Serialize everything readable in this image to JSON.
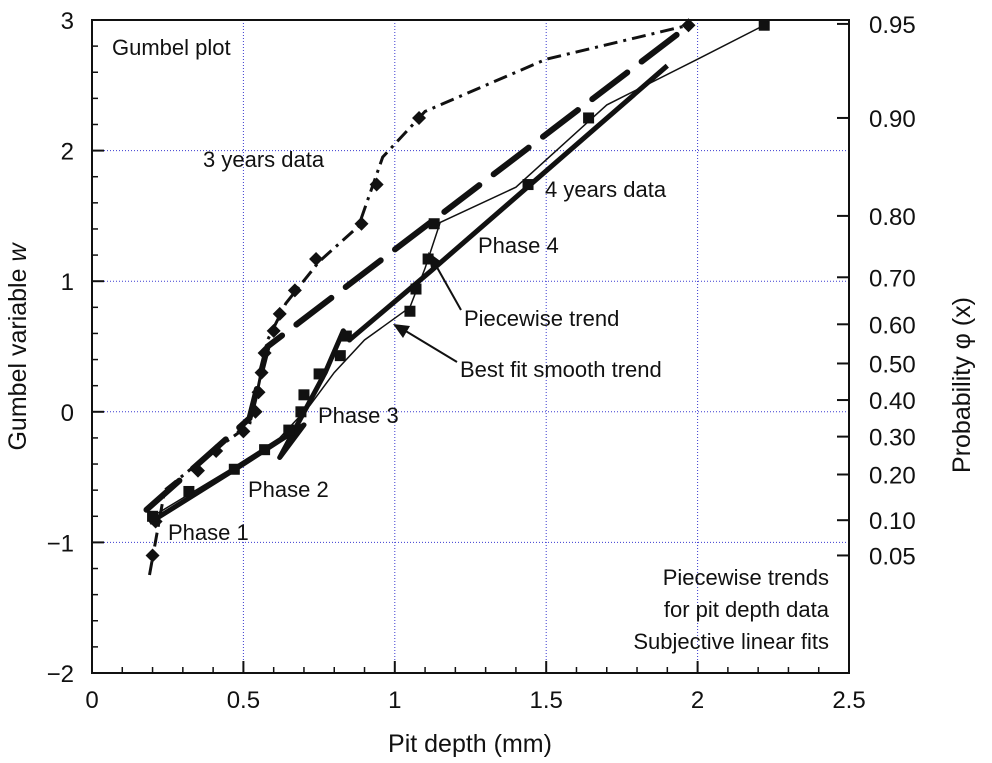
{
  "chart_data": {
    "type": "scatter",
    "title": "Gumbel plot",
    "xlabel": "Pit depth (mm)",
    "ylabel": "Gumbel variable w",
    "ylabel_italic_part": "w",
    "ylabel_right": "Probability φ (x)",
    "xlim": [
      0,
      2.5
    ],
    "ylim": [
      -2,
      3
    ],
    "xticks": [
      0,
      0.5,
      1,
      1.5,
      2,
      2.5
    ],
    "xtick_labels": [
      "0",
      "0.5",
      "1",
      "1.5",
      "2",
      "2.5"
    ],
    "yticks": [
      -2,
      -1,
      0,
      1,
      2,
      3
    ],
    "ytick_labels": [
      "−2",
      "−1",
      "0",
      "1",
      "2",
      "3"
    ],
    "right_ticks": [
      {
        "w": 2.97,
        "label": "0.95"
      },
      {
        "w": 2.25,
        "label": "0.90"
      },
      {
        "w": 1.5,
        "label": "0.80"
      },
      {
        "w": 1.03,
        "label": "0.70"
      },
      {
        "w": 0.67,
        "label": "0.60"
      },
      {
        "w": 0.37,
        "label": "0.50"
      },
      {
        "w": 0.09,
        "label": "0.40"
      },
      {
        "w": -0.19,
        "label": "0.30"
      },
      {
        "w": -0.48,
        "label": "0.20"
      },
      {
        "w": -0.83,
        "label": "0.10"
      },
      {
        "w": -1.1,
        "label": "0.05"
      }
    ],
    "grid": true,
    "series": [
      {
        "name": "3 years data",
        "marker": "diamond",
        "points": [
          {
            "x": 0.2,
            "y": -1.1
          },
          {
            "x": 0.21,
            "y": -0.84
          },
          {
            "x": 0.35,
            "y": -0.45
          },
          {
            "x": 0.41,
            "y": -0.3
          },
          {
            "x": 0.5,
            "y": -0.15
          },
          {
            "x": 0.54,
            "y": 0.0
          },
          {
            "x": 0.55,
            "y": 0.15
          },
          {
            "x": 0.56,
            "y": 0.3
          },
          {
            "x": 0.57,
            "y": 0.45
          },
          {
            "x": 0.6,
            "y": 0.62
          },
          {
            "x": 0.62,
            "y": 0.75
          },
          {
            "x": 0.67,
            "y": 0.93
          },
          {
            "x": 0.74,
            "y": 1.17
          },
          {
            "x": 0.89,
            "y": 1.44
          },
          {
            "x": 0.94,
            "y": 1.74
          },
          {
            "x": 1.08,
            "y": 2.25
          },
          {
            "x": 1.97,
            "y": 2.96
          }
        ]
      },
      {
        "name": "4 years data",
        "marker": "square",
        "points": [
          {
            "x": 0.2,
            "y": -0.8
          },
          {
            "x": 0.32,
            "y": -0.61
          },
          {
            "x": 0.47,
            "y": -0.44
          },
          {
            "x": 0.57,
            "y": -0.29
          },
          {
            "x": 0.65,
            "y": -0.14
          },
          {
            "x": 0.69,
            "y": 0.0
          },
          {
            "x": 0.7,
            "y": 0.13
          },
          {
            "x": 0.75,
            "y": 0.29
          },
          {
            "x": 0.82,
            "y": 0.43
          },
          {
            "x": 0.84,
            "y": 0.58
          },
          {
            "x": 1.05,
            "y": 0.77
          },
          {
            "x": 1.07,
            "y": 0.94
          },
          {
            "x": 1.11,
            "y": 1.17
          },
          {
            "x": 1.13,
            "y": 1.44
          },
          {
            "x": 1.44,
            "y": 1.74
          },
          {
            "x": 1.64,
            "y": 2.25
          },
          {
            "x": 2.22,
            "y": 2.96
          }
        ]
      }
    ],
    "trends": [
      {
        "label": "3 years data subjective linear fit",
        "style": "dashed",
        "points": [
          {
            "x": 0.18,
            "y": -0.75
          },
          {
            "x": 0.52,
            "y": -0.05
          },
          {
            "x": 0.58,
            "y": 0.5
          },
          {
            "x": 1.95,
            "y": 2.92
          }
        ]
      },
      {
        "label": "3 years data smooth trend",
        "style": "dash-dot",
        "points": [
          {
            "x": 0.19,
            "y": -1.25
          },
          {
            "x": 0.24,
            "y": -0.6
          },
          {
            "x": 0.4,
            "y": -0.3
          },
          {
            "x": 0.52,
            "y": -0.1
          },
          {
            "x": 0.55,
            "y": 0.2
          },
          {
            "x": 0.58,
            "y": 0.55
          },
          {
            "x": 0.64,
            "y": 0.83
          },
          {
            "x": 0.75,
            "y": 1.15
          },
          {
            "x": 0.88,
            "y": 1.42
          },
          {
            "x": 0.96,
            "y": 1.95
          },
          {
            "x": 1.1,
            "y": 2.3
          },
          {
            "x": 1.5,
            "y": 2.7
          },
          {
            "x": 1.97,
            "y": 2.96
          }
        ]
      },
      {
        "label": "Piecewise trend",
        "style": "thick",
        "points": [
          {
            "x": 0.19,
            "y": -0.85
          },
          {
            "x": 0.5,
            "y": -0.4
          },
          {
            "x": 0.7,
            "y": -0.1
          },
          {
            "x": 0.62,
            "y": -0.35
          },
          {
            "x": 0.77,
            "y": 0.3
          },
          {
            "x": 0.83,
            "y": 0.62
          },
          {
            "x": 0.85,
            "y": 0.55
          },
          {
            "x": 1.12,
            "y": 1.08
          },
          {
            "x": 1.9,
            "y": 2.65
          }
        ]
      },
      {
        "label": "Best fit smooth trend",
        "style": "thin",
        "points": [
          {
            "x": 0.2,
            "y": -0.8
          },
          {
            "x": 0.45,
            "y": -0.45
          },
          {
            "x": 0.62,
            "y": -0.2
          },
          {
            "x": 0.72,
            "y": 0.05
          },
          {
            "x": 0.8,
            "y": 0.3
          },
          {
            "x": 0.9,
            "y": 0.55
          },
          {
            "x": 1.05,
            "y": 0.8
          },
          {
            "x": 1.1,
            "y": 1.1
          },
          {
            "x": 1.15,
            "y": 1.45
          },
          {
            "x": 1.4,
            "y": 1.72
          },
          {
            "x": 1.7,
            "y": 2.35
          },
          {
            "x": 2.0,
            "y": 2.7
          },
          {
            "x": 2.22,
            "y": 2.96
          }
        ]
      }
    ],
    "annotations": {
      "label_3yr": "3 years data",
      "label_4yr": "4 years data",
      "phase1": "Phase 1",
      "phase2": "Phase 2",
      "phase3": "Phase 3",
      "phase4": "Phase 4",
      "piecewise": "Piecewise trend",
      "bestfit": "Best fit smooth trend",
      "note_lines": [
        "Piecewise trends",
        "for pit depth data",
        "Subjective linear fits"
      ]
    }
  }
}
